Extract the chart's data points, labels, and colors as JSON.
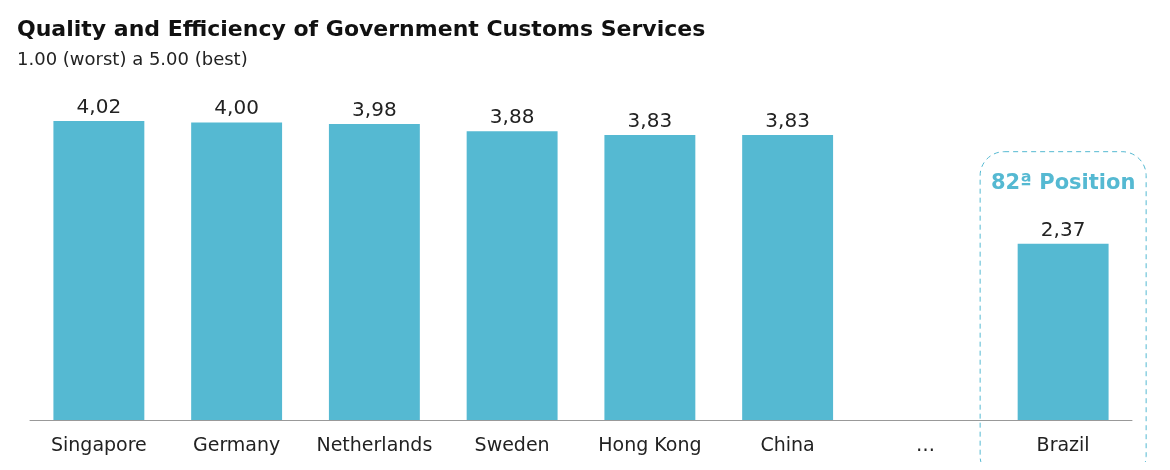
{
  "chart_data": {
    "type": "bar",
    "title": "Quality and Efficiency of Government Customs Services",
    "subtitle": "1.00 (worst) a 5.00 (best)",
    "categories": [
      "Singapore",
      "Germany",
      "Netherlands",
      "Sweden",
      "Hong Kong",
      "China",
      "…",
      "Brazil"
    ],
    "values": [
      4.02,
      4.0,
      3.98,
      3.88,
      3.83,
      3.83,
      null,
      2.37
    ],
    "value_labels": [
      "4,02",
      "4,00",
      "3,98",
      "3,88",
      "3,83",
      "3,83",
      null,
      "2,37"
    ],
    "color": "#55b9d2",
    "annotations": [
      "82ª Position"
    ],
    "grid": false
  }
}
